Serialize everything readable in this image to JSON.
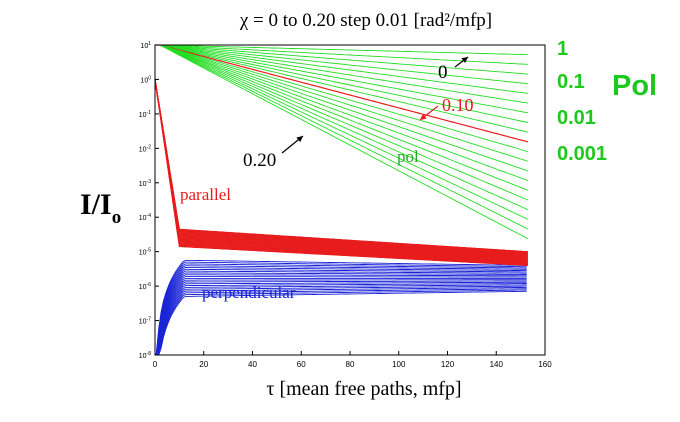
{
  "chart_data": {
    "type": "line",
    "title": "χ = 0 to 0.20 step 0.01  [rad²/mfp]",
    "xlabel": "τ  [mean free  paths, mfp]",
    "ylabel": "I/I",
    "ylabel_subscript": "o",
    "xlim": [
      0,
      160
    ],
    "ylim": [
      1e-08,
      10
    ],
    "yscale": "log",
    "x_ticks": [
      "0",
      "20",
      "40",
      "60",
      "80",
      "100",
      "120",
      "140",
      "160"
    ],
    "y_ticks": [
      "10^1",
      "10^0",
      "10^-1",
      "10^-2",
      "10^-3",
      "10^-4",
      "10^-5",
      "10^-6",
      "10^-7",
      "10^-8"
    ],
    "secondary_axis": {
      "label": "Pol",
      "ticks": [
        "1",
        "0.1",
        "0.01",
        "0.001"
      ],
      "color": "#1fc81f"
    },
    "chi_values": {
      "start": 0,
      "end": 0.2,
      "step": 0.01
    },
    "series": [
      {
        "name": "pol",
        "color": "#22dd22",
        "value_at_x0": 10,
        "value_at_x155_range": [
          10,
          2e-05
        ]
      },
      {
        "name": "parallel",
        "color": "#e81c1c",
        "value_at_x0": 1,
        "value_at_x12": 3e-05,
        "value_at_x155": 6e-06
      },
      {
        "name": "perpendicular",
        "color": "#1a24d6",
        "value_at_x10_range": [
          5e-07,
          5e-06
        ],
        "value_at_x155_range": [
          7e-07,
          4e-06
        ]
      }
    ],
    "highlighted_curve": {
      "label": "0.10",
      "color": "#e81c1c"
    },
    "annotations": [
      "0",
      "0.10",
      "0.20",
      "pol",
      "parallel",
      "perpendicular"
    ],
    "colors": {
      "pol": "#22dd22",
      "parallel": "#e81c1c",
      "perpendicular": "#1a24d6",
      "pol_axis": "#1fc81f"
    }
  }
}
